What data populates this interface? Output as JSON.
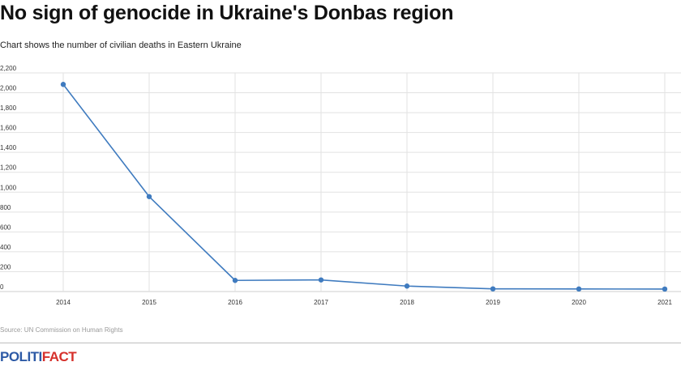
{
  "header": {
    "title": "No sign of genocide in Ukraine's Donbas region",
    "subtitle": "Chart shows the number of civilian deaths in Eastern Ukraine"
  },
  "footer": {
    "source": "Source: UN Commission on Human Rights",
    "logo_part1": "POLITI",
    "logo_part2": "FACT"
  },
  "colors": {
    "line": "#3f7bbf",
    "grid": "#e2e2e2",
    "logo_blue": "#2d5aa6",
    "logo_red": "#d6302b"
  },
  "chart_data": {
    "type": "line",
    "x": [
      "2014",
      "2015",
      "2016",
      "2017",
      "2018",
      "2019",
      "2020",
      "2021"
    ],
    "series": [
      {
        "values": [
          2084,
          955,
          112,
          117,
          55,
          27,
          26,
          25
        ]
      }
    ],
    "y_ticks": [
      "0",
      "200",
      "400",
      "600",
      "800",
      "1,000",
      "1,200",
      "1,400",
      "1,600",
      "1,800",
      "2,000",
      "2,200"
    ],
    "ylim": [
      0,
      2200
    ],
    "grid": true,
    "markers": true
  }
}
